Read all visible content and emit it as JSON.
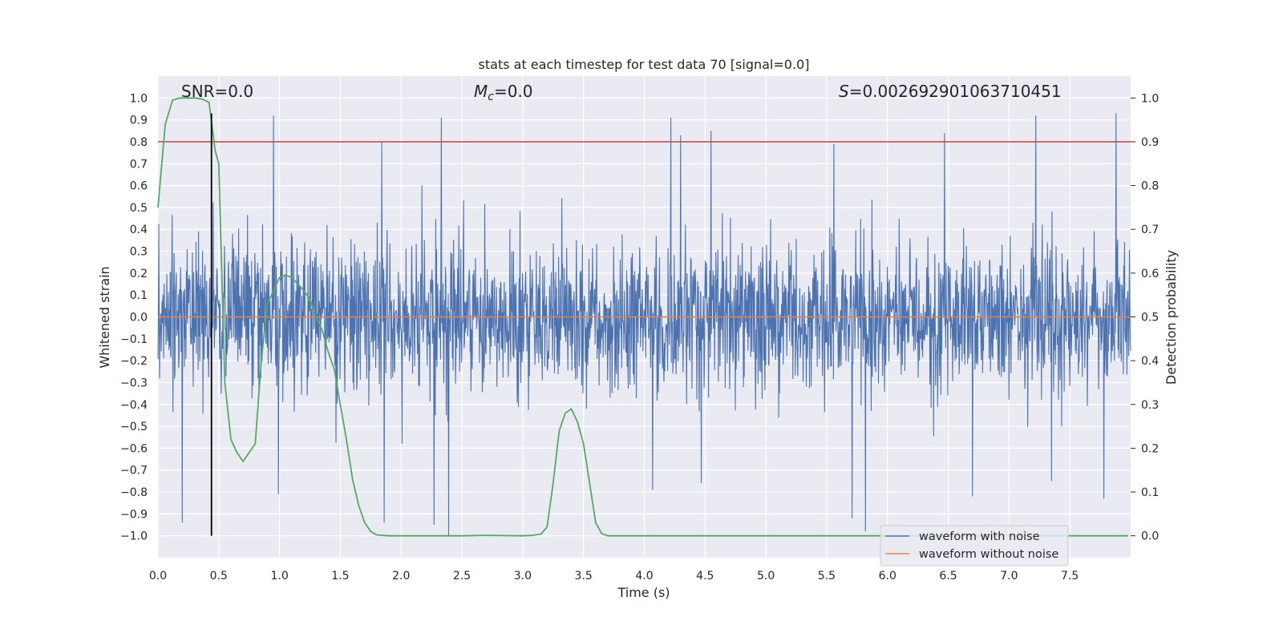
{
  "chart_data": {
    "type": "line",
    "title": "stats at each timestep for test data 70 [signal=0.0]",
    "xlabel": "Time (s)",
    "ylabel": "Whitened strain",
    "ylabel_right": "Detection probability",
    "xlim": [
      0.0,
      8.0
    ],
    "ylim": [
      -1.1,
      1.1
    ],
    "ylim_right": [
      -0.05,
      1.05
    ],
    "grid": true,
    "x_ticks": [
      "0.0",
      "0.5",
      "1.0",
      "1.5",
      "2.0",
      "2.5",
      "3.0",
      "3.5",
      "4.0",
      "4.5",
      "5.0",
      "5.5",
      "6.0",
      "6.5",
      "7.0",
      "7.5"
    ],
    "y_ticks": [
      "1.0",
      "0.9",
      "0.8",
      "0.7",
      "0.6",
      "0.5",
      "0.4",
      "0.3",
      "0.2",
      "0.1",
      "0.0",
      "−0.1",
      "−0.2",
      "−0.3",
      "−0.4",
      "−0.5",
      "−0.6",
      "−0.7",
      "−0.8",
      "−0.9",
      "−1.0"
    ],
    "y_right_ticks": [
      "1.0",
      "0.9",
      "0.8",
      "0.7",
      "0.6",
      "0.5",
      "0.4",
      "0.3",
      "0.2",
      "0.1",
      "0.0"
    ],
    "annotations": {
      "snr": "SNR=0.0",
      "mc_symbol": "M",
      "mc_sub": "c",
      "mc_value": "=0.0",
      "s_symbol": "S",
      "s_value": "=0.002692901063710451"
    },
    "threshold": 0.9,
    "marker_time": 0.44,
    "noise_peaks": {
      "positive": [
        [
          0.95,
          0.92
        ],
        [
          1.84,
          0.8
        ],
        [
          2.33,
          0.91
        ],
        [
          4.22,
          0.91
        ],
        [
          4.3,
          0.83
        ],
        [
          4.55,
          0.85
        ],
        [
          5.56,
          0.79
        ],
        [
          6.47,
          0.84
        ],
        [
          7.22,
          0.92
        ],
        [
          7.88,
          0.93
        ]
      ],
      "negative": [
        [
          0.2,
          -0.94
        ],
        [
          0.99,
          -0.81
        ],
        [
          1.86,
          -0.94
        ],
        [
          2.27,
          -0.95
        ],
        [
          2.39,
          -1.0
        ],
        [
          4.07,
          -0.79
        ],
        [
          4.47,
          -0.76
        ],
        [
          5.71,
          -0.92
        ],
        [
          5.82,
          -0.98
        ],
        [
          6.7,
          -0.82
        ],
        [
          7.35,
          -0.75
        ],
        [
          7.78,
          -0.83
        ]
      ]
    },
    "series": [
      {
        "name": "waveform with noise",
        "color": "#4c72b0",
        "kind": "noise",
        "amplitude_rms": 0.17
      },
      {
        "name": "waveform without noise",
        "color": "#dd8452",
        "kind": "flat",
        "value": 0.0
      },
      {
        "name": "detection probability",
        "color": "#55a868",
        "axis": "right",
        "x": [
          0.0,
          0.06,
          0.12,
          0.18,
          0.24,
          0.3,
          0.36,
          0.42,
          0.47,
          0.5,
          0.55,
          0.6,
          0.65,
          0.7,
          0.75,
          0.8,
          0.85,
          0.9,
          0.95,
          1.0,
          1.05,
          1.1,
          1.15,
          1.2,
          1.25,
          1.3,
          1.35,
          1.4,
          1.45,
          1.5,
          1.55,
          1.6,
          1.65,
          1.7,
          1.75,
          1.8,
          1.9,
          2.0,
          2.5,
          2.7,
          3.0,
          3.08,
          3.15,
          3.2,
          3.25,
          3.3,
          3.35,
          3.4,
          3.45,
          3.5,
          3.55,
          3.6,
          3.65,
          3.7,
          3.8,
          4.0,
          7.98
        ],
        "values": [
          0.75,
          0.94,
          0.995,
          1.0,
          1.0,
          1.0,
          0.998,
          0.99,
          0.88,
          0.85,
          0.35,
          0.22,
          0.19,
          0.17,
          0.19,
          0.21,
          0.4,
          0.53,
          0.56,
          0.59,
          0.595,
          0.59,
          0.575,
          0.56,
          0.54,
          0.5,
          0.47,
          0.42,
          0.38,
          0.3,
          0.22,
          0.13,
          0.07,
          0.03,
          0.01,
          0.002,
          0.0,
          0.0,
          0.0,
          0.001,
          0.0,
          0.001,
          0.004,
          0.02,
          0.12,
          0.24,
          0.28,
          0.29,
          0.26,
          0.21,
          0.12,
          0.03,
          0.005,
          0.0,
          0.0,
          0.0,
          0.0
        ]
      }
    ],
    "legend_position": "lower-right"
  }
}
